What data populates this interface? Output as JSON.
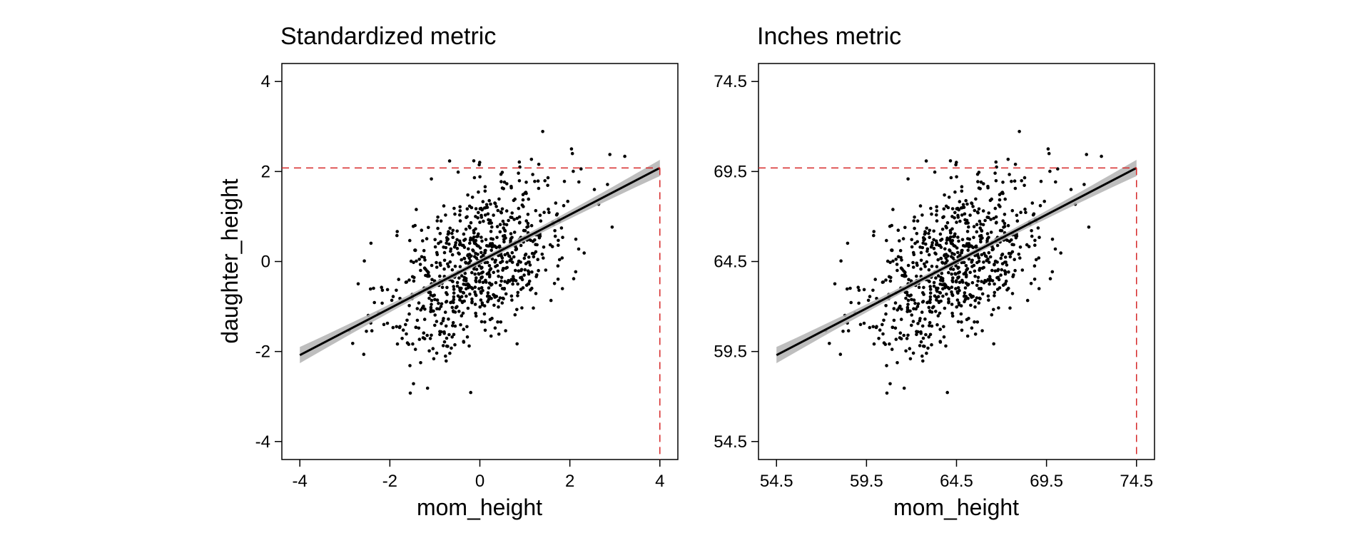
{
  "chart_data": [
    {
      "type": "scatter",
      "title": "Standardized metric",
      "xlabel": "mom_height",
      "ylabel": "daughter_height",
      "xlim": [
        -4.4,
        4.4
      ],
      "ylim": [
        -4.4,
        4.4
      ],
      "xticks": [
        "-4",
        "-2",
        "0",
        "2",
        "4"
      ],
      "yticks": [
        "-4",
        "-2",
        "0",
        "2",
        "4"
      ],
      "grid": false,
      "regression": {
        "slope": 0.52,
        "intercept": 0.0,
        "x_range": [
          -4,
          4
        ]
      },
      "reference_point": {
        "x": 4,
        "y": 2.08
      },
      "point_cloud": {
        "n": 800,
        "x_mean": 0,
        "x_sd": 1,
        "y_mean": 0,
        "y_sd": 1,
        "r": 0.52
      },
      "colors": {
        "points": "#000000",
        "line": "#000000",
        "band": "#b3b3b3",
        "reference": "#d62728"
      }
    },
    {
      "type": "scatter",
      "title": "Inches metric",
      "xlabel": "mom_height",
      "ylabel": "",
      "xlim": [
        53.5,
        75.5
      ],
      "ylim": [
        53.5,
        75.5
      ],
      "xticks": [
        "54.5",
        "59.5",
        "64.5",
        "69.5",
        "74.5"
      ],
      "yticks": [
        "54.5",
        "59.5",
        "64.5",
        "69.5",
        "74.5"
      ],
      "grid": false,
      "regression": {
        "slope": 0.52,
        "intercept": 30.96,
        "x_range": [
          54.5,
          74.5
        ]
      },
      "reference_point": {
        "x": 74.5,
        "y": 69.7
      },
      "point_cloud": {
        "n": 800,
        "x_mean": 64.5,
        "x_sd": 2.5,
        "y_mean": 64.5,
        "y_sd": 2.5,
        "r": 0.52
      },
      "colors": {
        "points": "#000000",
        "line": "#000000",
        "band": "#b3b3b3",
        "reference": "#d62728"
      }
    }
  ]
}
